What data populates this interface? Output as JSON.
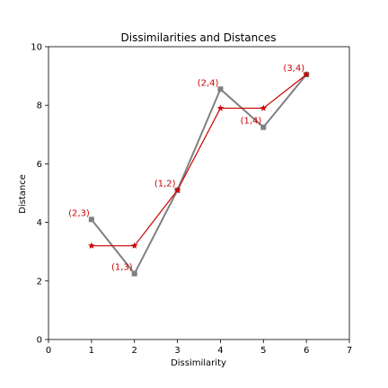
{
  "chart_data": {
    "type": "line",
    "title": "Dissimilarities and Distances",
    "xlabel": "Dissimilarity",
    "ylabel": "Distance",
    "xlim": [
      0,
      7
    ],
    "ylim": [
      0,
      10
    ],
    "xticks": [
      "0",
      "1",
      "2",
      "3",
      "4",
      "5",
      "6",
      "7"
    ],
    "yticks": [
      "0",
      "2",
      "4",
      "6",
      "8",
      "10"
    ],
    "grid": false,
    "series": [
      {
        "marker": "square",
        "color": "#808080",
        "points": [
          {
            "x": 1,
            "y": 4.1
          },
          {
            "x": 2,
            "y": 2.25
          },
          {
            "x": 3,
            "y": 5.1
          },
          {
            "x": 4,
            "y": 8.55
          },
          {
            "x": 5,
            "y": 7.25
          },
          {
            "x": 6,
            "y": 9.05
          }
        ]
      },
      {
        "marker": "star",
        "color": "#cc0000",
        "points": [
          {
            "x": 1,
            "y": 3.2
          },
          {
            "x": 2,
            "y": 3.2
          },
          {
            "x": 3,
            "y": 5.1
          },
          {
            "x": 4,
            "y": 7.9
          },
          {
            "x": 5,
            "y": 7.9
          },
          {
            "x": 6,
            "y": 9.05
          }
        ]
      }
    ],
    "point_labels": [
      {
        "text": "(2,3)",
        "x": 1,
        "y": 4.1
      },
      {
        "text": "(1,3)",
        "x": 2,
        "y": 2.25
      },
      {
        "text": "(1,2)",
        "x": 3,
        "y": 5.1
      },
      {
        "text": "(2,4)",
        "x": 4,
        "y": 8.55
      },
      {
        "text": "(1,4)",
        "x": 5,
        "y": 7.25
      },
      {
        "text": "(3,4)",
        "x": 6,
        "y": 9.05
      }
    ],
    "label_color": "#cc0000"
  }
}
